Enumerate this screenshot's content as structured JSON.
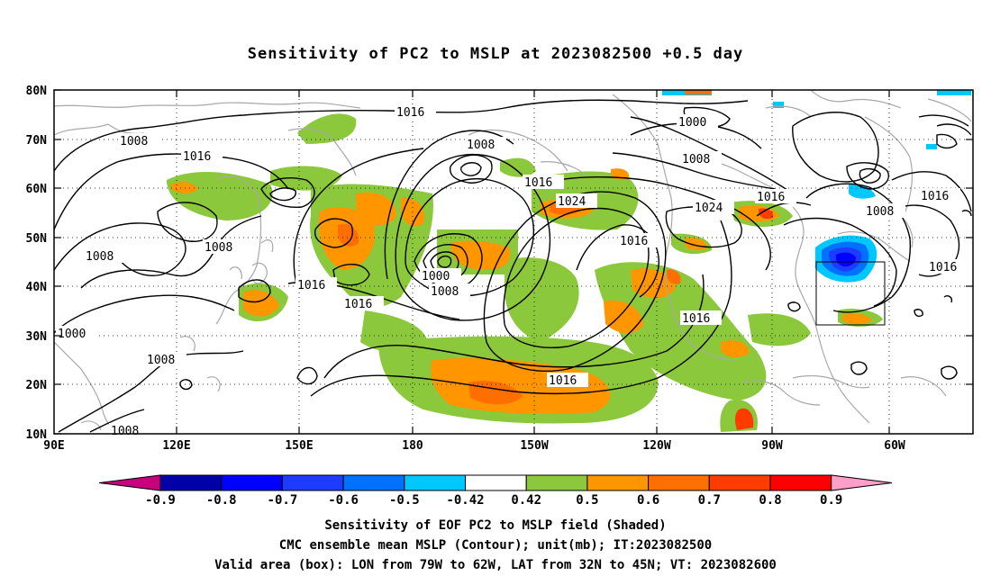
{
  "title": "Sensitivity of PC2 to MSLP at 2023082500 +0.5 day",
  "map": {
    "lat_labels": [
      "80N",
      "70N",
      "60N",
      "50N",
      "40N",
      "30N",
      "20N",
      "10N"
    ],
    "lon_labels": [
      "90E",
      "120E",
      "150E",
      "180",
      "150W",
      "120W",
      "90W",
      "60W"
    ],
    "gridlines": "dotted",
    "colors": {
      "land_outline": "#a8a8a8",
      "contour": "#000000",
      "box": "#000000"
    },
    "isobars": [
      {
        "label": "1016"
      },
      {
        "label": "1008"
      },
      {
        "label": "1016"
      },
      {
        "label": "1000"
      },
      {
        "label": "1008"
      },
      {
        "label": "1008"
      },
      {
        "label": "1016"
      },
      {
        "label": "1024"
      },
      {
        "label": "1024"
      },
      {
        "label": "1016"
      },
      {
        "label": "1016"
      },
      {
        "label": "1008"
      },
      {
        "label": "1008"
      },
      {
        "label": "1008"
      },
      {
        "label": "1016"
      },
      {
        "label": "1000"
      },
      {
        "label": "1008"
      },
      {
        "label": "1016"
      },
      {
        "label": "1016"
      },
      {
        "label": "1016"
      },
      {
        "label": "1000"
      },
      {
        "label": "1008"
      },
      {
        "label": "1008"
      },
      {
        "label": "1016"
      },
      {
        "label": "1016"
      }
    ]
  },
  "colorbar": {
    "labels": [
      "-0.9",
      "-0.8",
      "-0.7",
      "-0.6",
      "-0.5",
      "-0.42",
      "0.42",
      "0.5",
      "0.6",
      "0.7",
      "0.8",
      "0.9"
    ],
    "colors": [
      "#0000a8",
      "#0000ff",
      "#1e3cff",
      "#0070ff",
      "#00c8ff",
      "#ffffff",
      "#8cc83c",
      "#ff9600",
      "#ff6e00",
      "#ff3c00",
      "#ff0000"
    ],
    "end_low": "#c8007d",
    "end_high": "#ff9ec8"
  },
  "captions": {
    "line1": "Sensitivity of EOF PC2 to MSLP field (Shaded)",
    "line2": "CMC ensemble mean MSLP (Contour); unit(mb); IT:2023082500",
    "line3": "Valid area (box): LON from 79W to 62W, LAT from 32N to 45N; VT: 2023082600"
  }
}
